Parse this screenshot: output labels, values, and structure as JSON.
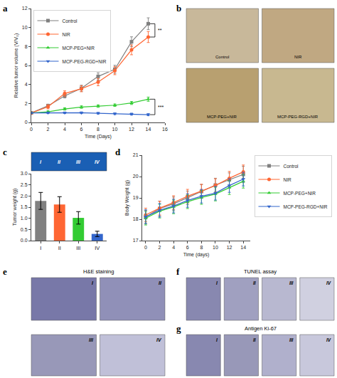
{
  "chart_data": [
    {
      "type": "line",
      "annotations": [
        {
          "text": "a"
        },
        {
          "text": "**",
          "between": [
            "Control",
            "NIR"
          ]
        },
        {
          "text": "***",
          "between": [
            "MCP-PEG+NIR",
            "MCP-PEG-RGD+NIR"
          ]
        }
      ],
      "xlabel": "Time (Days)",
      "ylabel": "Relative tumor volume (V/V₀)",
      "x": [
        0,
        2,
        4,
        6,
        8,
        10,
        12,
        14
      ],
      "series": [
        {
          "name": "Control",
          "color": "#808080",
          "marker": "square",
          "values": [
            1.0,
            1.75,
            2.8,
            3.6,
            4.85,
            5.6,
            8.5,
            10.4
          ],
          "yerr": [
            0.05,
            0.18,
            0.22,
            0.32,
            0.38,
            0.42,
            0.52,
            0.62
          ]
        },
        {
          "name": "NIR",
          "color": "#FF6633",
          "marker": "circle",
          "values": [
            1.0,
            1.65,
            3.05,
            3.55,
            4.25,
            5.45,
            7.65,
            9.0
          ],
          "yerr": [
            0.05,
            0.22,
            0.28,
            0.32,
            0.38,
            0.42,
            0.52,
            0.58
          ]
        },
        {
          "name": "MCP-PEG+NIR",
          "color": "#33CC33",
          "marker": "triangle-up",
          "values": [
            1.0,
            1.12,
            1.42,
            1.62,
            1.72,
            1.82,
            2.05,
            2.45
          ],
          "yerr": [
            0.05,
            0.1,
            0.12,
            0.13,
            0.13,
            0.13,
            0.16,
            0.22
          ]
        },
        {
          "name": "MCP-PEG-RGD+NIR",
          "color": "#3366CC",
          "marker": "triangle-down",
          "values": [
            1.0,
            1.02,
            1.02,
            1.02,
            0.97,
            0.92,
            0.88,
            0.82
          ],
          "yerr": [
            0.05,
            0.08,
            0.08,
            0.09,
            0.09,
            0.09,
            0.1,
            0.11
          ]
        }
      ],
      "xlim": [
        0,
        16
      ],
      "ylim": [
        0,
        12
      ],
      "xticks": [
        0,
        2,
        4,
        6,
        8,
        10,
        12,
        14,
        16
      ],
      "yticks": [
        0,
        2,
        4,
        6,
        8,
        10,
        12
      ],
      "grid": false,
      "legend": "upper left"
    },
    {
      "type": "image",
      "annotations": [
        {
          "text": "b"
        }
      ],
      "categories": [
        "Control",
        "NIR",
        "MCP-PEG+NIR",
        "MCP-PEG-RGD+NIR"
      ],
      "colors": [
        "#c8b89a",
        "#c0a882",
        "#b8a070",
        "#c8b890"
      ]
    },
    {
      "type": "bar",
      "annotations": [
        {
          "text": "c"
        }
      ],
      "ylabel": "Tumor weight (g)",
      "categories": [
        "I",
        "II",
        "III",
        "IV"
      ],
      "values": [
        1.78,
        1.62,
        1.02,
        0.3
      ],
      "yerr": [
        0.38,
        0.35,
        0.28,
        0.12
      ],
      "colors": [
        "#808080",
        "#FF6633",
        "#33CC33",
        "#3366CC"
      ],
      "ylim": [
        0,
        3.0
      ],
      "yticks": [
        {
          "value": 0.0,
          "label": "0.0"
        },
        0.5,
        {
          "value": 1.0,
          "label": "1.0"
        },
        1.5,
        {
          "value": 2.0,
          "label": "2.0"
        },
        2.5,
        {
          "value": 3.0,
          "label": "3.0"
        }
      ],
      "grid": false
    },
    {
      "type": "image",
      "categories": [
        "I",
        "II",
        "III",
        "IV"
      ],
      "color": "#1a5fb4"
    },
    {
      "type": "line",
      "annotations": [
        {
          "text": "d"
        }
      ],
      "xlabel": "Time (days)",
      "ylabel": "Body Weight (g)",
      "x": [
        0,
        2,
        4,
        6,
        8,
        10,
        12,
        14
      ],
      "series": [
        {
          "name": "Control",
          "color": "#808080",
          "marker": "square",
          "values": [
            18.1,
            18.5,
            18.72,
            19.0,
            19.3,
            19.6,
            19.85,
            20.1
          ],
          "yerr": [
            0.32,
            0.35,
            0.32,
            0.32,
            0.32,
            0.32,
            0.32,
            0.38
          ]
        },
        {
          "name": "NIR",
          "color": "#FF6633",
          "marker": "circle",
          "values": [
            18.2,
            18.52,
            18.78,
            19.08,
            19.32,
            19.58,
            19.92,
            20.22
          ],
          "yerr": [
            0.32,
            0.32,
            0.32,
            0.32,
            0.32,
            0.32,
            0.32,
            0.32
          ]
        },
        {
          "name": "MCP-PEG+NIR",
          "color": "#33CC33",
          "marker": "triangle-up",
          "values": [
            18.05,
            18.38,
            18.58,
            18.82,
            19.02,
            19.18,
            19.48,
            19.78
          ],
          "yerr": [
            0.32,
            0.32,
            0.32,
            0.32,
            0.32,
            0.32,
            0.32,
            0.32
          ]
        },
        {
          "name": "MCP-PEG-RGD+NIR",
          "color": "#3366CC",
          "marker": "triangle-down",
          "values": [
            18.12,
            18.42,
            18.62,
            18.88,
            19.08,
            19.22,
            19.58,
            19.88
          ],
          "yerr": [
            0.32,
            0.32,
            0.32,
            0.32,
            0.32,
            0.32,
            0.32,
            0.32
          ]
        }
      ],
      "xlim": [
        -0.5,
        15
      ],
      "ylim": [
        17,
        21
      ],
      "xticks": [
        0,
        2,
        4,
        6,
        8,
        10,
        12,
        14
      ],
      "yticks": [
        17,
        18,
        19,
        20,
        21
      ],
      "grid": false,
      "legend": "right"
    },
    {
      "type": "image",
      "title": "H&E staining",
      "annotations": [
        {
          "text": "e"
        }
      ],
      "categories": [
        "I",
        "II",
        "III",
        "IV"
      ],
      "colors": [
        "#7878a8",
        "#9090b8",
        "#9898b8",
        "#c0c0d8"
      ]
    },
    {
      "type": "image",
      "title": "TUNEL assay",
      "annotations": [
        {
          "text": "f"
        }
      ],
      "categories": [
        "I",
        "II",
        "III",
        "IV"
      ],
      "colors": [
        "#8888b0",
        "#a0a0c0",
        "#b8b8d0",
        "#d0d0e0"
      ]
    },
    {
      "type": "image",
      "title": "Antigen Ki-67",
      "annotations": [
        {
          "text": "g"
        }
      ],
      "categories": [
        "I",
        "II",
        "III",
        "IV"
      ],
      "colors": [
        "#8888b0",
        "#9898b8",
        "#b0b0cc",
        "#c8c8dc"
      ]
    }
  ]
}
